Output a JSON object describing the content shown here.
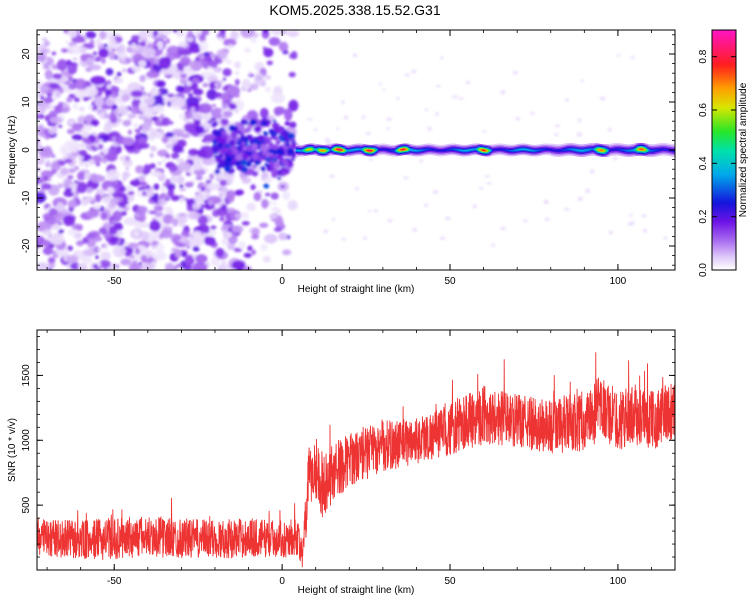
{
  "figure_title": "KOM5.2025.338.15.52.G31",
  "chart_data": [
    {
      "type": "heatmap",
      "xlabel": "Height of straight line (km)",
      "ylabel": "Frequency (Hz)",
      "xlim": [
        -73,
        117
      ],
      "ylim": [
        -25,
        25
      ],
      "xticks": [
        -50,
        0,
        50,
        100
      ],
      "yticks": [
        -20,
        -10,
        0,
        10,
        20
      ],
      "xtick_labels": [
        "-50",
        "0",
        "50",
        "100"
      ],
      "ytick_labels": [
        "-20",
        "-10",
        "0",
        "10",
        "20"
      ],
      "grid": false,
      "colorbar": {
        "label": "Normalized spectral amplitude",
        "range": [
          0,
          0.9
        ],
        "ticks": [
          0.0,
          0.2,
          0.4,
          0.6,
          0.8
        ],
        "tick_labels": [
          "0.0",
          "0.2",
          "0.4",
          "0.6",
          "0.8"
        ],
        "colormap": "rainbow (white-purple-blue-cyan-green-yellow-orange-red-magenta)"
      },
      "regions": [
        {
          "x_range": [
            -73,
            4
          ],
          "freq_range": [
            -25,
            25
          ],
          "amplitude_range": [
            0.02,
            0.2
          ],
          "description_value": "broadband noise"
        },
        {
          "x_range": [
            -20,
            4
          ],
          "freq_range": [
            -8,
            8
          ],
          "amplitude_range": [
            0.1,
            0.3
          ]
        },
        {
          "x_range": [
            4,
            117
          ],
          "freq_center": 0,
          "freq_halfwidth": 1.2,
          "amplitude_range": [
            0.3,
            0.85
          ]
        }
      ],
      "band_peaks": [
        {
          "x": 8,
          "amplitude": 0.65
        },
        {
          "x": 12,
          "amplitude": 0.7
        },
        {
          "x": 17,
          "amplitude": 0.85
        },
        {
          "x": 26,
          "amplitude": 0.83
        },
        {
          "x": 36,
          "amplitude": 0.8
        },
        {
          "x": 60,
          "amplitude": 0.78
        },
        {
          "x": 95,
          "amplitude": 0.72
        },
        {
          "x": 107,
          "amplitude": 0.75
        }
      ]
    },
    {
      "type": "line",
      "xlabel": "Height of straight line (km)",
      "ylabel": "SNR (10 * v/v)",
      "xlim": [
        -73,
        117
      ],
      "ylim": [
        0,
        1850
      ],
      "xticks": [
        -50,
        0,
        50,
        100
      ],
      "yticks": [
        500,
        1000,
        1500
      ],
      "xtick_labels": [
        "-50",
        "0",
        "50",
        "100"
      ],
      "ytick_labels": [
        "500",
        "1000",
        "1500"
      ],
      "grid": false,
      "series": [
        {
          "color": "#ee3333",
          "x": [
            -73,
            -60,
            -50,
            -40,
            -30,
            -20,
            -10,
            0,
            5,
            6,
            7,
            8,
            10,
            12,
            15,
            20,
            25,
            30,
            40,
            50,
            55,
            60,
            70,
            80,
            90,
            95,
            100,
            105,
            110,
            117
          ],
          "y": [
            250,
            230,
            240,
            260,
            245,
            235,
            250,
            240,
            250,
            80,
            400,
            700,
            800,
            650,
            750,
            850,
            900,
            950,
            1000,
            1080,
            1150,
            1200,
            1150,
            1100,
            1150,
            1250,
            1150,
            1200,
            1150,
            1250
          ],
          "noise_amplitude": [
            150,
            150,
            160,
            160,
            150,
            150,
            150,
            140,
            150,
            80,
            200,
            250,
            250,
            250,
            230,
            200,
            200,
            200,
            180,
            200,
            230,
            230,
            200,
            220,
            230,
            250,
            230,
            230,
            230,
            230
          ]
        }
      ]
    }
  ]
}
